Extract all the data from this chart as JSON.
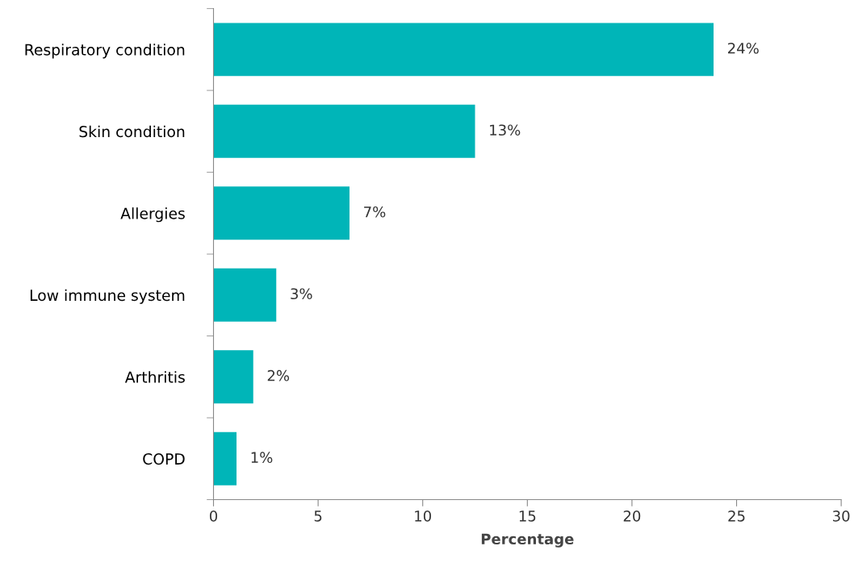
{
  "chart_data": {
    "type": "bar",
    "orientation": "horizontal",
    "xlabel": "Percentage",
    "categories": [
      "Respiratory condition",
      "Skin condition",
      "Allergies",
      "Low immune system",
      "Arthritis",
      "COPD"
    ],
    "values": [
      23.9,
      12.5,
      6.5,
      3.0,
      1.9,
      1.1
    ],
    "value_labels": [
      "24%",
      "13%",
      "7%",
      "3%",
      "2%",
      "1%"
    ],
    "color": "#00b5b8",
    "xlim": [
      0,
      30
    ],
    "xticks": [
      0,
      5,
      10,
      15,
      20,
      25,
      30
    ],
    "grid": false,
    "legend": false
  }
}
